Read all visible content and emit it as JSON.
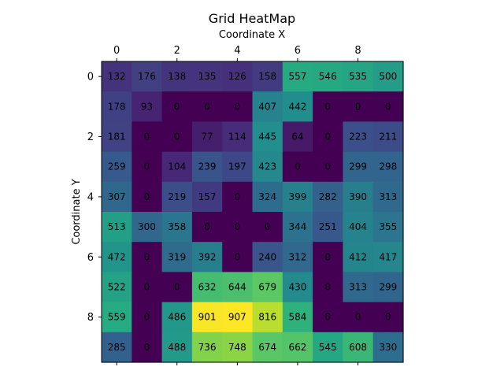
{
  "chart_data": {
    "type": "heatmap",
    "title": "Grid HeatMap",
    "xlabel": "Coordinate X",
    "ylabel": "Coordinate Y",
    "x_ticks": [
      0,
      2,
      4,
      6,
      8
    ],
    "y_ticks": [
      0,
      2,
      4,
      6,
      8
    ],
    "x_axis_position": "top",
    "colormap": "viridis",
    "vmin": 0,
    "vmax": 907,
    "grid": false,
    "values": [
      [
        132,
        176,
        138,
        135,
        126,
        158,
        557,
        546,
        535,
        500
      ],
      [
        178,
        93,
        0,
        0,
        0,
        407,
        442,
        0,
        0,
        0
      ],
      [
        181,
        0,
        0,
        77,
        114,
        445,
        64,
        0,
        223,
        211
      ],
      [
        259,
        0,
        104,
        239,
        197,
        423,
        0,
        0,
        299,
        298
      ],
      [
        307,
        0,
        219,
        157,
        0,
        324,
        399,
        282,
        390,
        313
      ],
      [
        513,
        300,
        358,
        0,
        0,
        0,
        344,
        251,
        404,
        355
      ],
      [
        472,
        0,
        319,
        392,
        0,
        240,
        312,
        0,
        412,
        417
      ],
      [
        522,
        0,
        0,
        632,
        644,
        679,
        430,
        0,
        313,
        299
      ],
      [
        559,
        0,
        486,
        901,
        907,
        816,
        584,
        0,
        0,
        0
      ],
      [
        285,
        0,
        488,
        736,
        748,
        674,
        662,
        545,
        608,
        330
      ]
    ]
  }
}
